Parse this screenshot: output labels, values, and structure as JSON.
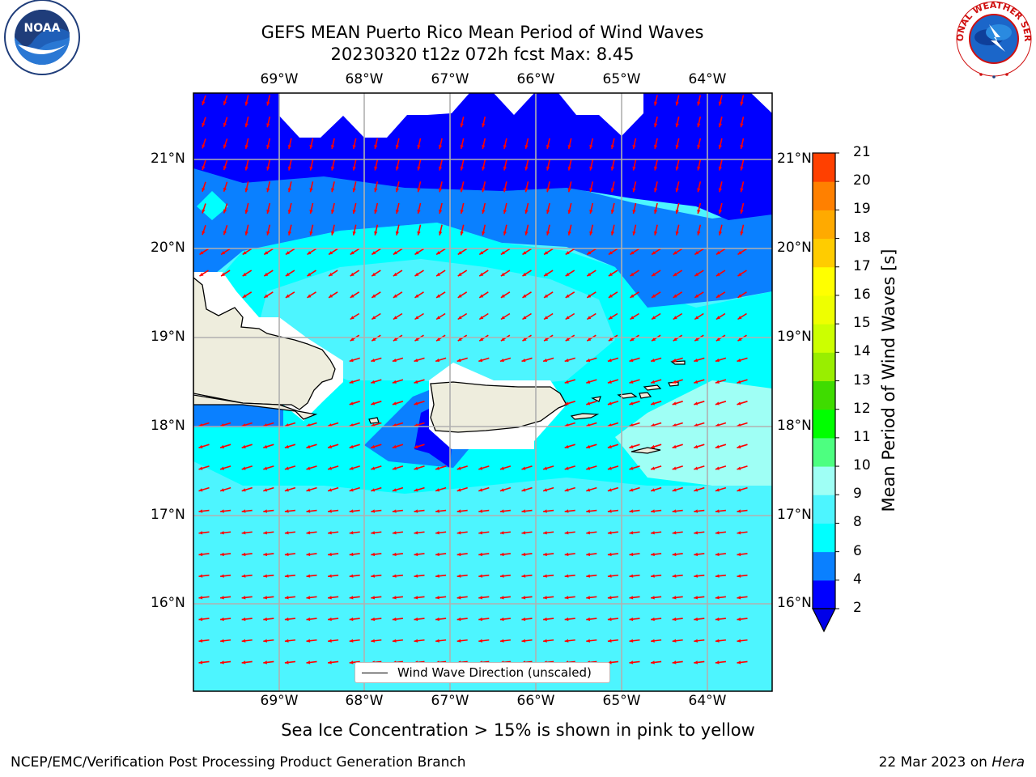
{
  "title": {
    "line1": "GEFS MEAN Puerto Rico Mean Period of Wind Waves",
    "line2": "20230320 t12z 072h fcst   Max: 8.45"
  },
  "map": {
    "lon_labels": [
      "69°W",
      "68°W",
      "67°W",
      "66°W",
      "65°W",
      "64°W"
    ],
    "lat_labels": [
      "21°N",
      "20°N",
      "19°N",
      "18°N",
      "17°N",
      "16°N"
    ],
    "legend_label": "Wind Wave Direction (unscaled)",
    "land_color": "#eeeddd",
    "vector_color": "#ff0000"
  },
  "colorbar": {
    "title": "Mean Period of Wind Waves [s]",
    "ticks": [
      "2",
      "4",
      "6",
      "8",
      "9",
      "10",
      "11",
      "12",
      "13",
      "14",
      "15",
      "16",
      "17",
      "18",
      "19",
      "20",
      "21"
    ],
    "colors": [
      "#0000ff",
      "#0a80ff",
      "#00ffff",
      "#4df5ff",
      "#9ffff5",
      "#4dff80",
      "#00ff00",
      "#3fdc00",
      "#99ee00",
      "#ccff00",
      "#eeff00",
      "#ffff00",
      "#ffcc00",
      "#ffaa00",
      "#ff8000",
      "#ff4000",
      "#ff0000"
    ],
    "extend_color": "#0000e8"
  },
  "footer": {
    "note": "Sea Ice Concentration > 15% is shown in pink to yellow",
    "left": "NCEP/EMC/Verification Post Processing Product Generation Branch",
    "date": "22 Mar 2023 on ",
    "machine": "Hera"
  },
  "logos": {
    "noaa": "NOAA",
    "nws": "NATIONAL WEATHER SERVICE"
  }
}
